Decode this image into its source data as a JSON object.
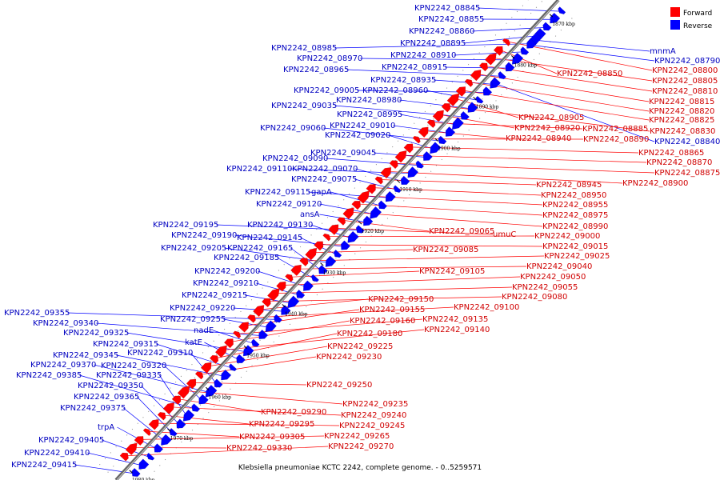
{
  "caption": "Klebsiella pneumoniae KCTC 2242, complete genome. - 0..5259571",
  "legend": [
    {
      "label": "Forward",
      "color": "#ff0000"
    },
    {
      "label": "Reverse",
      "color": "#0000ff"
    }
  ],
  "colors": {
    "forward": "#ff0000",
    "reverse": "#0000ff",
    "forward_text": "#d00000",
    "reverse_text": "#0000c0",
    "axis": "#777777"
  },
  "scale_ticks": [
    "1870 kbp",
    "1880 kbp",
    "1890 kbp",
    "1900 kbp",
    "1910 kbp",
    "1920 kbp",
    "1930 kbp",
    "1940 kbp",
    "1950 kbp",
    "1960 kbp",
    "1970 kbp",
    "1980 kbp"
  ],
  "reverse_genes": [
    "KPN2242_08845",
    "KPN2242_08855",
    "KPN2242_08860",
    "KPN2242_08895",
    "KPN2242_08985",
    "KPN2242_08910",
    "KPN2242_08970",
    "KPN2242_08915",
    "KPN2242_08965",
    "KPN2242_08935",
    "KPN2242_09005",
    "KPN2242_08960",
    "KPN2242_08980",
    "KPN2242_09035",
    "KPN2242_08995",
    "KPN2242_09010",
    "KPN2242_09060",
    "KPN2242_09020",
    "KPN2242_09045",
    "KPN2242_09090",
    "KPN2242_09110",
    "KPN2242_09070",
    "KPN2242_09075",
    "KPN2242_09115",
    "gapA",
    "KPN2242_09120",
    "ansA",
    "KPN2242_09195",
    "KPN2242_09130",
    "KPN2242_09190",
    "KPN2242_09145",
    "KPN2242_09205",
    "KPN2242_09165",
    "KPN2242_09185",
    "KPN2242_09200",
    "KPN2242_09210",
    "KPN2242_09215",
    "KPN2242_09220",
    "KPN2242_09355",
    "KPN2242_09255",
    "KPN2242_09340",
    "nadE",
    "KPN2242_09325",
    "katE",
    "KPN2242_09315",
    "KPN2242_09345",
    "KPN2242_09310",
    "KPN2242_09370",
    "KPN2242_09320",
    "KPN2242_09385",
    "KPN2242_09335",
    "KPN2242_09350",
    "KPN2242_09365",
    "KPN2242_09375",
    "trpA",
    "KPN2242_09405",
    "KPN2242_09410",
    "KPN2242_09415",
    "mnmA",
    "KPN2242_08790",
    "KPN2242_08840"
  ],
  "forward_genes": [
    "KPN2242_08800",
    "KPN2242_08850",
    "KPN2242_08805",
    "KPN2242_08810",
    "KPN2242_08815",
    "KPN2242_08820",
    "KPN2242_08825",
    "KPN2242_08905",
    "KPN2242_08830",
    "KPN2242_08920",
    "KPN2242_08885",
    "KPN2242_08940",
    "KPN2242_08890",
    "KPN2242_08865",
    "KPN2242_08870",
    "KPN2242_08875",
    "KPN2242_08900",
    "KPN2242_08945",
    "KPN2242_08950",
    "KPN2242_08955",
    "KPN2242_08975",
    "KPN2242_08990",
    "KPN2242_09065",
    "umuC",
    "KPN2242_09000",
    "KPN2242_09015",
    "KPN2242_09085",
    "KPN2242_09025",
    "KPN2242_09040",
    "KPN2242_09105",
    "KPN2242_09050",
    "KPN2242_09055",
    "KPN2242_09080",
    "KPN2242_09150",
    "KPN2242_09100",
    "KPN2242_09155",
    "KPN2242_09135",
    "KPN2242_09160",
    "KPN2242_09140",
    "KPN2242_09180",
    "KPN2242_09225",
    "KPN2242_09230",
    "KPN2242_09250",
    "KPN2242_09235",
    "KPN2242_09290",
    "KPN2242_09240",
    "KPN2242_09295",
    "KPN2242_09245",
    "KPN2242_09305",
    "KPN2242_09265",
    "KPN2242_09330",
    "KPN2242_09270"
  ]
}
